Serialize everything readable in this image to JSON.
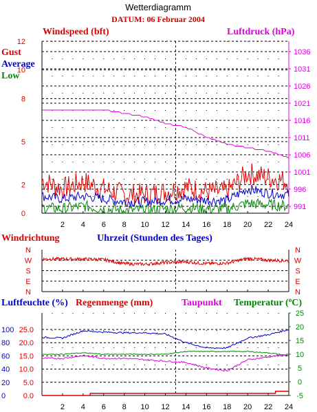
{
  "title": "Wetterdiagramm",
  "date": "DATUM: 06 Februar 2004",
  "colors": {
    "red": "#dd0000",
    "blue": "#0000cc",
    "green": "#008800",
    "magenta": "#dd00dd",
    "grid": "#000000"
  },
  "panel1": {
    "left_title": "Windspeed (bft)",
    "right_title": "Luftdruck (hPa)",
    "legend": {
      "gust": "Gust",
      "average": "Average",
      "low": "Low"
    },
    "left_ticks": [
      "0",
      "2",
      "5",
      "8",
      "10",
      "12"
    ],
    "right_ticks": [
      "991",
      "996",
      "1001",
      "1006",
      "1011",
      "1016",
      "1021",
      "1026",
      "1031",
      "1036"
    ],
    "x_ticks": [
      "2",
      "4",
      "6",
      "8",
      "10",
      "12",
      "14",
      "16",
      "18",
      "20",
      "22",
      "24"
    ]
  },
  "panel2": {
    "left_title": "Windrichtung",
    "center_title": "Uhrzeit (Stunden des Tages)",
    "dir_ticks": [
      "N",
      "W",
      "S",
      "E",
      "N"
    ]
  },
  "panel3": {
    "title_humidity": "Luftfeuchte (%)",
    "title_rain": "Regenmenge (mm)",
    "title_dewpoint": "Taupunkt",
    "title_temperature": "Temperatur (",
    "title_temperature_unit": "o",
    "title_temperature_close": "C)",
    "humidity_ticks": [
      "0",
      "20",
      "40",
      "60",
      "80",
      "100"
    ],
    "rain_ticks": [
      "0.0",
      "5.0",
      "10.0",
      "15.0",
      "20.0",
      "25.0"
    ],
    "temp_ticks": [
      "-5",
      "0",
      "5",
      "10",
      "15",
      "20",
      "25"
    ],
    "x_ticks": [
      "2",
      "4",
      "6",
      "8",
      "10",
      "12",
      "14",
      "16",
      "18",
      "20",
      "22",
      "24"
    ]
  },
  "chart_data": [
    {
      "type": "line",
      "title": "Windspeed (bft)",
      "xlabel": "Uhrzeit (Stunden des Tages)",
      "x": [
        0,
        2,
        4,
        6,
        8,
        10,
        12,
        14,
        16,
        18,
        20,
        22,
        24
      ],
      "xlim": [
        0,
        24
      ],
      "ylim": [
        0,
        12
      ],
      "series": [
        {
          "name": "Gust",
          "axis": "wind",
          "color": "#dd0000",
          "values": [
            2.3,
            1.7,
            2.2,
            1.7,
            1.3,
            1.3,
            1.5,
            1.8,
            1.5,
            1.5,
            2.8,
            2.5,
            2.2
          ]
        },
        {
          "name": "Average",
          "axis": "wind",
          "color": "#0000cc",
          "values": [
            1.2,
            1.0,
            1.2,
            1.0,
            0.8,
            0.8,
            0.9,
            1.0,
            0.9,
            0.9,
            1.7,
            1.4,
            1.3
          ]
        },
        {
          "name": "Low",
          "axis": "wind",
          "color": "#008800",
          "values": [
            0.4,
            0.3,
            0.5,
            0.3,
            0.2,
            0.2,
            0.3,
            0.4,
            0.3,
            0.3,
            0.7,
            0.6,
            0.5
          ]
        },
        {
          "name": "Luftdruck",
          "axis": "pressure",
          "color": "#dd00dd",
          "values": [
            1019,
            1019,
            1019,
            1019,
            1018,
            1017,
            1015,
            1014,
            1011,
            1009,
            1008,
            1007,
            1005
          ]
        }
      ],
      "pressure_ylim": [
        989,
        1039
      ]
    },
    {
      "type": "line",
      "title": "Windrichtung",
      "x": [
        0,
        2,
        4,
        6,
        8,
        10,
        12,
        14,
        16,
        18,
        20,
        22,
        24
      ],
      "xlim": [
        0,
        24
      ],
      "y_categories": [
        "N",
        "W",
        "S",
        "E",
        "N"
      ],
      "series": [
        {
          "name": "Windrichtung",
          "color": "#dd0000",
          "values": [
            280,
            280,
            280,
            275,
            240,
            235,
            250,
            255,
            240,
            245,
            285,
            270,
            265
          ]
        }
      ]
    },
    {
      "type": "line",
      "title": "Luftfeuchte (%) / Regenmenge (mm) / Taupunkt / Temperatur",
      "x": [
        0,
        2,
        4,
        6,
        8,
        10,
        12,
        14,
        16,
        18,
        20,
        22,
        24
      ],
      "xlim": [
        0,
        24
      ],
      "series": [
        {
          "name": "Luftfeuchte",
          "axis": "humidity",
          "color": "#0000cc",
          "values": [
            88,
            87,
            98,
            96,
            95,
            95,
            93,
            80,
            72,
            72,
            87,
            92,
            100
          ]
        },
        {
          "name": "Regenmenge",
          "axis": "rain",
          "color": "#dd0000",
          "values": [
            0.0,
            0.0,
            0.0,
            0.8,
            0.8,
            0.8,
            0.8,
            0.8,
            0.8,
            0.8,
            0.8,
            0.8,
            1.6
          ]
        },
        {
          "name": "Taupunkt",
          "axis": "temperature",
          "color": "#dd00dd",
          "values": [
            8.5,
            8.5,
            9.5,
            8.5,
            8.5,
            8,
            7.5,
            7,
            5,
            4,
            8,
            9,
            10
          ]
        },
        {
          "name": "Temperatur",
          "axis": "temperature",
          "color": "#008800",
          "values": [
            10,
            10,
            10.5,
            10,
            10,
            10,
            10,
            11,
            11,
            11,
            11,
            10.5,
            9.5
          ]
        }
      ],
      "humidity_ylim": [
        0,
        125
      ],
      "rain_ylim": [
        0,
        31.25
      ],
      "temperature_ylim": [
        -5,
        25
      ]
    }
  ]
}
